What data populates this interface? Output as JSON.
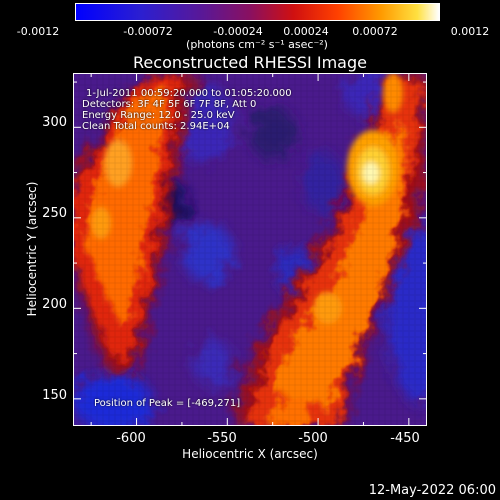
{
  "colorbar": {
    "ticks": [
      "-0.0012",
      "-0.00072",
      "-0.00024",
      "0.00024",
      "0.00072",
      "0.0012"
    ],
    "unit_label": "(photons cm⁻² s⁻¹ asec⁻²)"
  },
  "annotations": {
    "time_range": "1-Jul-2011 00:59:20.000 to 01:05:20.000",
    "detectors": "Detectors: 3F 4F 5F 6F 7F 8F, Att 0",
    "energy": "Energy Range: 12.0 - 25.0 keV",
    "clean": "Clean     Total counts: 2.94E+04",
    "peak": "Position of Peak = [-469,271]"
  },
  "date_stamp": "12-May-2022 06:00",
  "chart_data": {
    "type": "heatmap",
    "title": "Reconstructed RHESSI Image",
    "xlabel": "Heliocentric X (arcsec)",
    "ylabel": "Heliocentric Y (arcsec)",
    "xlim": [
      -635,
      -440
    ],
    "ylim": [
      135,
      330
    ],
    "xticks": [
      -600,
      -550,
      -500,
      -450
    ],
    "yticks": [
      150,
      200,
      250,
      300
    ],
    "clim": [
      -0.0012,
      0.0012
    ],
    "colormap": "RHESSI std gamma (blue-purple-red-orange-yellow-white)",
    "peak": {
      "x": -469,
      "y": 271,
      "value": 0.0012
    },
    "grid": false
  }
}
